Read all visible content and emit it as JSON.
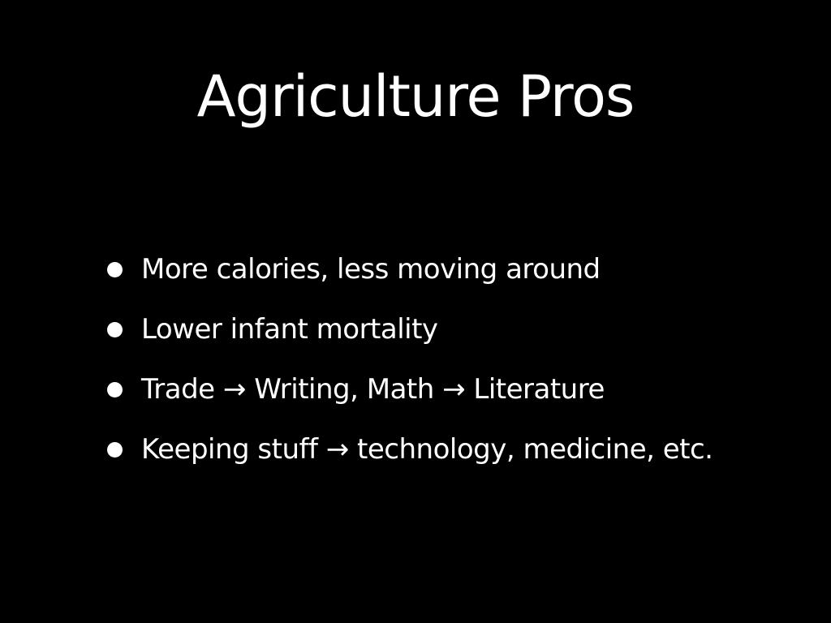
{
  "slide": {
    "title": "Agriculture Pros",
    "bullets": [
      {
        "text": "More calories, less moving around"
      },
      {
        "text": "Lower infant mortality"
      },
      {
        "text": "Trade → Writing, Math → Literature"
      },
      {
        "text": "Keeping stuff → technology, medicine, etc."
      }
    ],
    "colors": {
      "background": "#000000",
      "text": "#ffffff"
    }
  }
}
